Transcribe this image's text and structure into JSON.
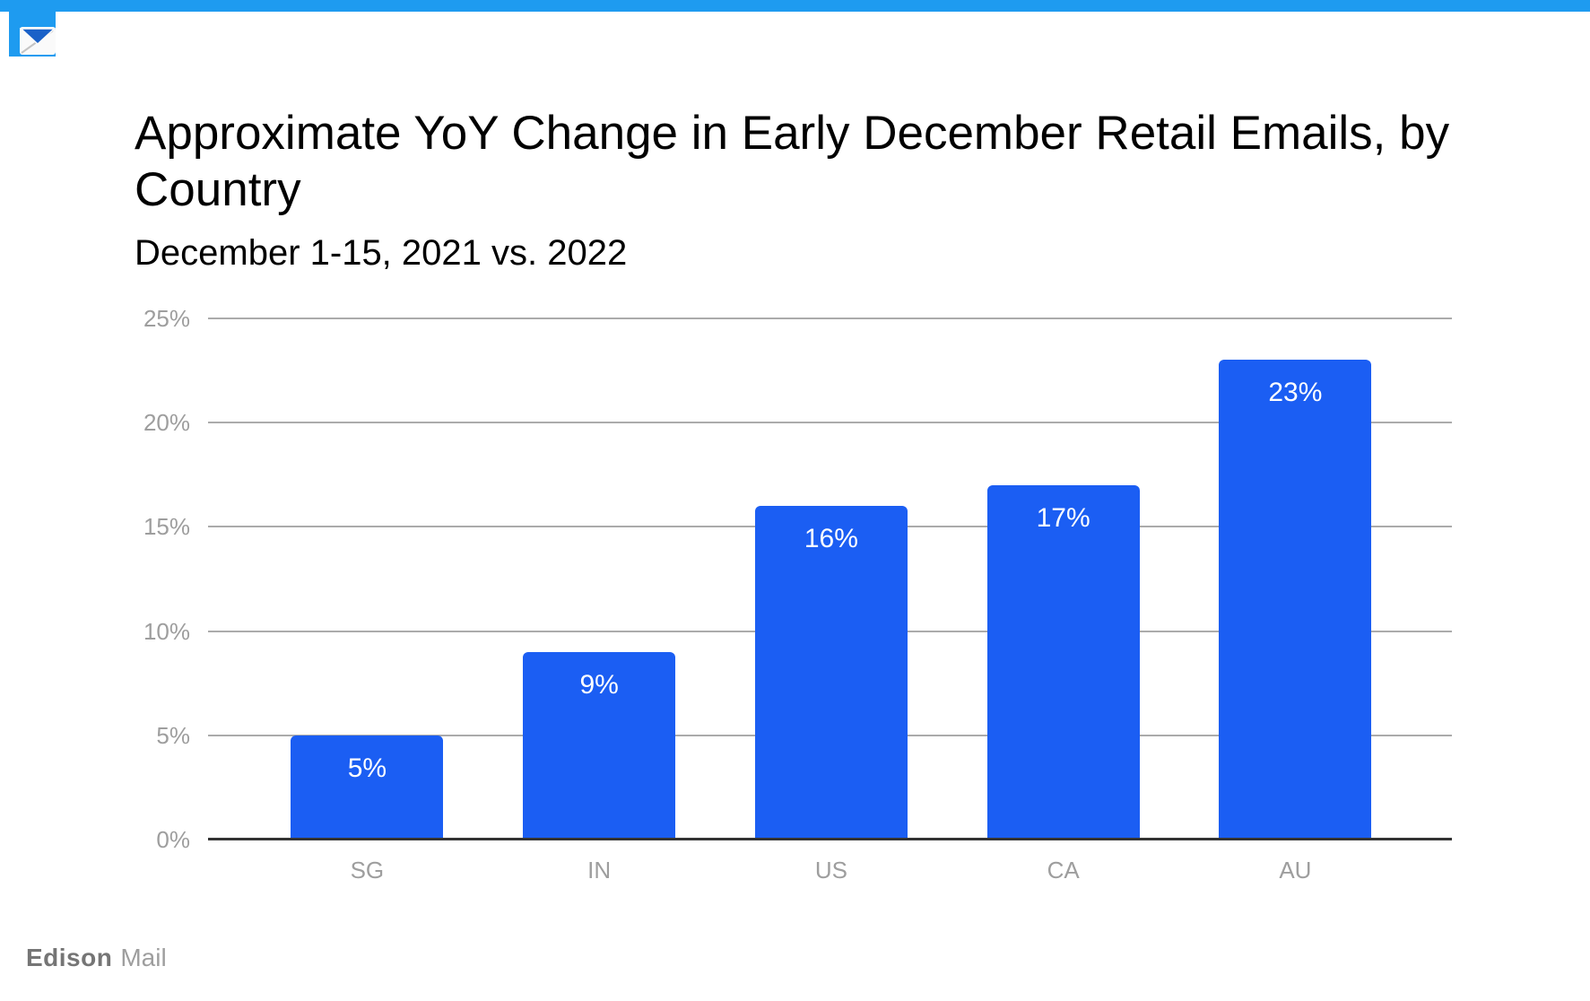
{
  "header": {
    "top_bar_color": "#1E9BF0",
    "app_icon": "edison-mail-envelope-icon"
  },
  "chart_data": {
    "type": "bar",
    "title": "Approximate YoY Change in Early December Retail Emails, by Country",
    "title_lines": [
      "Approximate YoY Change in Early December Retail Emails, by",
      "Country"
    ],
    "subtitle": "December 1-15, 2021 vs. 2022",
    "xlabel": "",
    "ylabel": "",
    "categories": [
      "SG",
      "IN",
      "US",
      "CA",
      "AU"
    ],
    "values": [
      5,
      9,
      16,
      17,
      23
    ],
    "value_labels": [
      "5%",
      "9%",
      "16%",
      "17%",
      "23%"
    ],
    "yticks": [
      0,
      5,
      10,
      15,
      20,
      25
    ],
    "ytick_labels": [
      "0%",
      "5%",
      "10%",
      "15%",
      "20%",
      "25%"
    ],
    "ylim": [
      0,
      25
    ],
    "grid": true,
    "legend_position": "none",
    "bar_color": "#1B5EF3",
    "value_label_color": "#FFFFFF",
    "gridline_color": "#ABABAB",
    "axis_line_color": "#333333",
    "axis_text_color": "#9E9E9E"
  },
  "branding": {
    "logo_bold": "Edison",
    "logo_light": "Mail"
  },
  "colors": {
    "background": "#FFFFFF",
    "accent_blue_bars": "#1B5EF3",
    "accent_azure_header": "#1E9BF0",
    "envelope_flap_blue": "#1A61C8",
    "title_text": "#000000"
  }
}
